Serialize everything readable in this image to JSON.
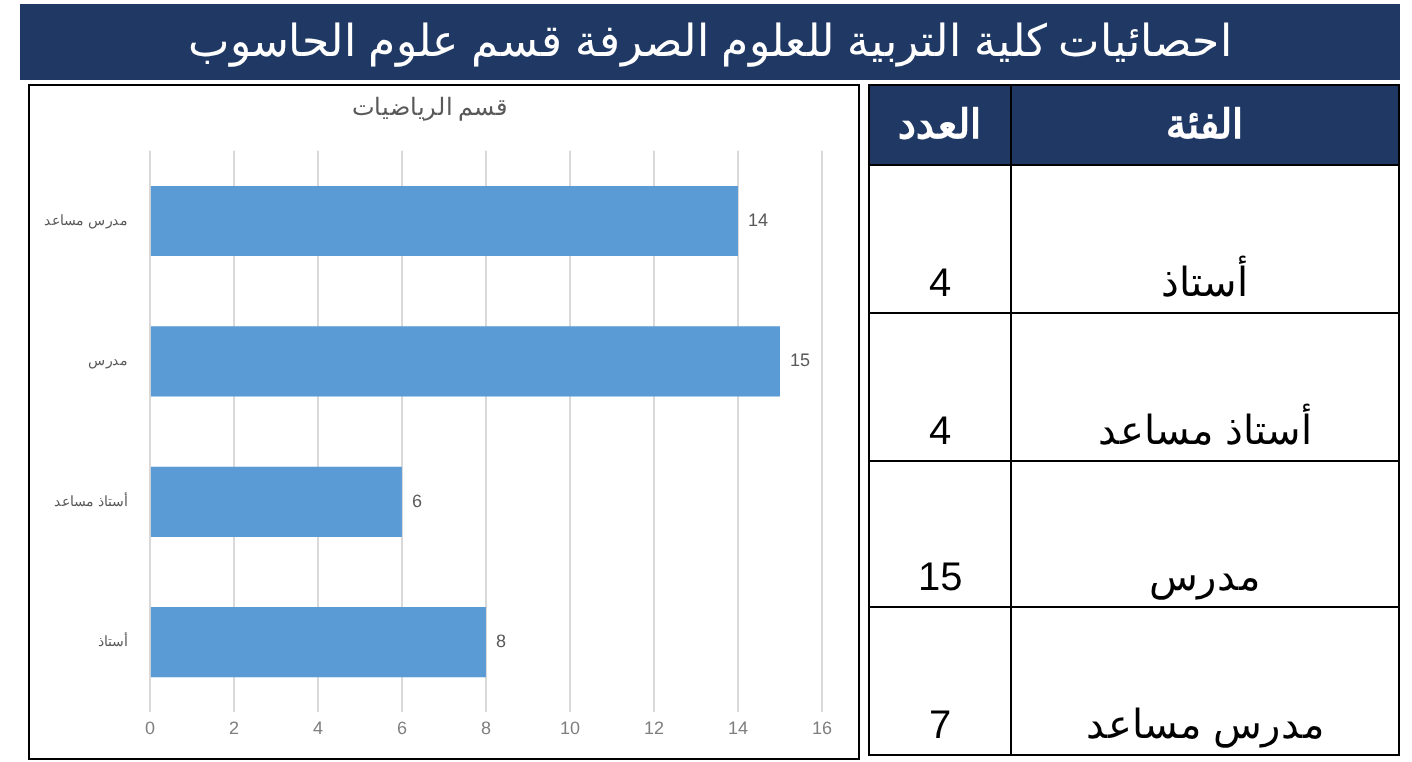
{
  "chart_data": [
    {
      "type": "bar",
      "orientation": "horizontal",
      "title": "قسم الرياضيات",
      "categories": [
        "مدرس مساعد",
        "مدرس",
        "أستاذ مساعد",
        "أستاذ"
      ],
      "values": [
        14,
        15,
        6,
        8
      ],
      "color": "#5b9bd5",
      "xlim": [
        0,
        16
      ],
      "xticks": [
        0,
        2,
        4,
        6,
        8,
        10,
        12,
        14,
        16
      ],
      "grid": "x",
      "data_labels": true
    },
    {
      "type": "other",
      "title": "احصائيات كلية التربية للعلوم الصرفة قسم علوم الحاسوب",
      "xlabel": "الفئة",
      "ylabel": "العدد",
      "categories": [
        "أستاذ",
        "أستاذ مساعد",
        "مدرس",
        "مدرس مساعد"
      ],
      "values": [
        4,
        4,
        15,
        7
      ],
      "data_labels": true
    }
  ]
}
